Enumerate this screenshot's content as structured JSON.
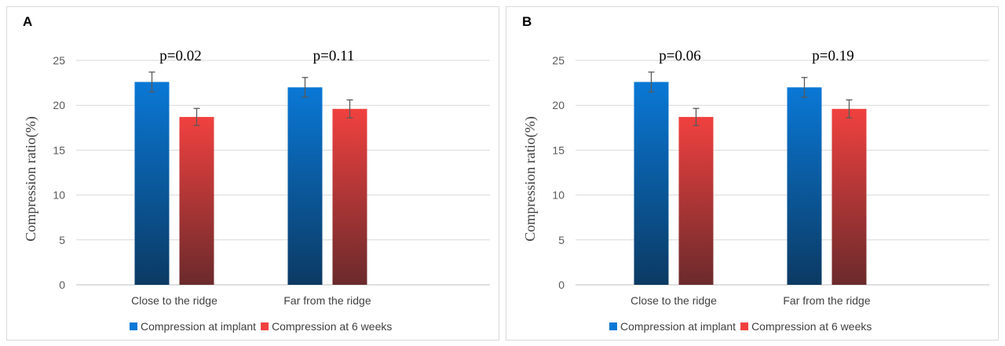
{
  "colors": {
    "implant_top": "#0a78d6",
    "implant_bottom": "#0b3a63",
    "weeks_top": "#f0413f",
    "weeks_bottom": "#6b2a2c"
  },
  "chart_data": [
    {
      "type": "bar",
      "panel_label": "A",
      "title": "",
      "xlabel": "",
      "ylabel": "Compression ratio(%)",
      "ylim": [
        0,
        25
      ],
      "yticks": [
        "0",
        "5",
        "10",
        "15",
        "20",
        "25"
      ],
      "categories": [
        "Close to the ridge",
        "Far from the ridge"
      ],
      "series": [
        {
          "name": "Compression at implant",
          "values": [
            22.6,
            22.0
          ],
          "errors": [
            1.1,
            1.1
          ]
        },
        {
          "name": "Compression at 6 weeks",
          "values": [
            18.7,
            19.6
          ],
          "errors": [
            0.95,
            1.0
          ]
        }
      ],
      "annotations": [
        "p=0.02",
        "p=0.11"
      ],
      "legend": "bottom",
      "grid": true
    },
    {
      "type": "bar",
      "panel_label": "B",
      "title": "",
      "xlabel": "",
      "ylabel": "Compression ratio(%)",
      "ylim": [
        0,
        25
      ],
      "yticks": [
        "0",
        "5",
        "10",
        "15",
        "20",
        "25"
      ],
      "categories": [
        "Close to the ridge",
        "Far from the ridge"
      ],
      "series": [
        {
          "name": "Compression at implant",
          "values": [
            22.6,
            22.0
          ],
          "errors": [
            1.1,
            1.1
          ]
        },
        {
          "name": "Compression at 6 weeks",
          "values": [
            18.7,
            19.6
          ],
          "errors": [
            0.95,
            1.0
          ]
        }
      ],
      "annotations": [
        "p=0.06",
        "p=0.19"
      ],
      "legend": "bottom",
      "grid": true
    }
  ]
}
